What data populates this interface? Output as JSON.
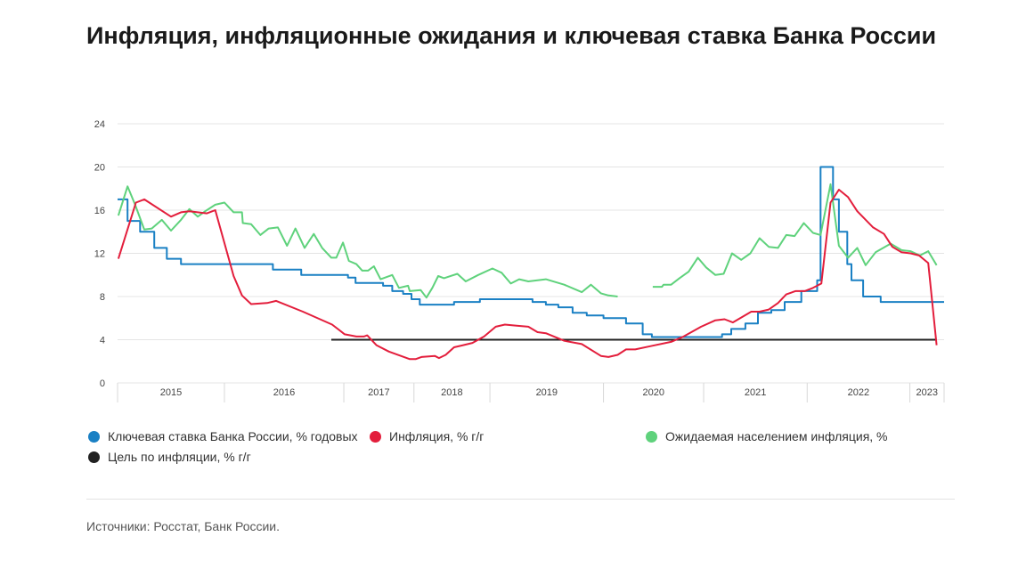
{
  "title": "Инфляция, инфляционные ожидания и ключевая ставка Банка России",
  "source": "Источники: Росстат, Банк России.",
  "chart_data": {
    "type": "line",
    "title": "Инфляция, инфляционные ожидания и ключевая ставка Банка России",
    "xlabel": "",
    "ylabel": "",
    "x_unit": "months since start of 2015 (approx.)",
    "xlim": [
      0,
      99
    ],
    "ylim": [
      0,
      24
    ],
    "yticks": [
      0,
      4,
      8,
      12,
      16,
      20,
      24
    ],
    "grid": true,
    "legend_position": "bottom",
    "x_bands": [
      {
        "label": "2015",
        "start": 0,
        "end": 12.8
      },
      {
        "label": "2016",
        "start": 12.8,
        "end": 27.1
      },
      {
        "label": "2017",
        "start": 27.1,
        "end": 35.5
      },
      {
        "label": "2018",
        "start": 35.5,
        "end": 44.6
      },
      {
        "label": "2019",
        "start": 44.6,
        "end": 58.2
      },
      {
        "label": "2020",
        "start": 58.2,
        "end": 70.2
      },
      {
        "label": "2021",
        "start": 70.2,
        "end": 82.6
      },
      {
        "label": "2022",
        "start": 82.6,
        "end": 94.9
      },
      {
        "label": "2023",
        "start": 94.9,
        "end": 99
      }
    ],
    "series": [
      {
        "name": "Ключевая ставка Банка России, % годовых",
        "color": "#1a80c4",
        "step": true,
        "points": [
          [
            0,
            17
          ],
          [
            1.2,
            15
          ],
          [
            2.7,
            14
          ],
          [
            4.4,
            12.5
          ],
          [
            5.9,
            11.5
          ],
          [
            7.6,
            11
          ],
          [
            18.6,
            10.5
          ],
          [
            22.0,
            10
          ],
          [
            27.6,
            9.75
          ],
          [
            28.5,
            9.25
          ],
          [
            31.8,
            9
          ],
          [
            32.9,
            8.5
          ],
          [
            34.2,
            8.25
          ],
          [
            35.2,
            7.75
          ],
          [
            36.2,
            7.25
          ],
          [
            40.3,
            7.5
          ],
          [
            43.4,
            7.75
          ],
          [
            49.7,
            7.5
          ],
          [
            51.3,
            7.25
          ],
          [
            52.8,
            7
          ],
          [
            54.5,
            6.5
          ],
          [
            56.2,
            6.25
          ],
          [
            58.2,
            6
          ],
          [
            60.9,
            5.5
          ],
          [
            62.9,
            4.5
          ],
          [
            64.0,
            4.25
          ],
          [
            72.4,
            4.5
          ],
          [
            73.5,
            5
          ],
          [
            75.2,
            5.5
          ],
          [
            76.7,
            6.5
          ],
          [
            78.3,
            6.75
          ],
          [
            79.9,
            7.5
          ],
          [
            81.9,
            8.5
          ],
          [
            83.8,
            9.5
          ],
          [
            84.2,
            20
          ],
          [
            85.7,
            17
          ],
          [
            86.4,
            14
          ],
          [
            87.4,
            11
          ],
          [
            87.9,
            9.5
          ],
          [
            89.3,
            8
          ],
          [
            91.4,
            7.5
          ],
          [
            99,
            7.5
          ]
        ]
      },
      {
        "name": "Инфляция, % г/г",
        "color": "#e31e3c",
        "step": false,
        "points": [
          [
            0.1,
            11.5
          ],
          [
            2.2,
            16.7
          ],
          [
            3.2,
            17
          ],
          [
            6.4,
            15.4
          ],
          [
            7.6,
            15.8
          ],
          [
            8.6,
            15.9
          ],
          [
            10.7,
            15.7
          ],
          [
            11.7,
            16
          ],
          [
            13.9,
            9.9
          ],
          [
            14.9,
            8.1
          ],
          [
            16.0,
            7.3
          ],
          [
            17.9,
            7.4
          ],
          [
            19.0,
            7.6
          ],
          [
            22.2,
            6.6
          ],
          [
            25.7,
            5.4
          ],
          [
            27.2,
            4.5
          ],
          [
            28.6,
            4.3
          ],
          [
            29.5,
            4.3
          ],
          [
            29.9,
            4.4
          ],
          [
            31.0,
            3.5
          ],
          [
            32.5,
            2.9
          ],
          [
            35.0,
            2.2
          ],
          [
            35.7,
            2.2
          ],
          [
            36.4,
            2.4
          ],
          [
            38.0,
            2.5
          ],
          [
            38.5,
            2.3
          ],
          [
            39.3,
            2.6
          ],
          [
            40.3,
            3.3
          ],
          [
            41.4,
            3.5
          ],
          [
            42.5,
            3.7
          ],
          [
            43.9,
            4.3
          ],
          [
            45.3,
            5.2
          ],
          [
            46.4,
            5.4
          ],
          [
            47.8,
            5.3
          ],
          [
            49.2,
            5.2
          ],
          [
            50.3,
            4.7
          ],
          [
            51.3,
            4.6
          ],
          [
            53.5,
            3.9
          ],
          [
            55.6,
            3.6
          ],
          [
            57.9,
            2.5
          ],
          [
            58.8,
            2.4
          ],
          [
            59.9,
            2.6
          ],
          [
            60.9,
            3.1
          ],
          [
            62.0,
            3.1
          ],
          [
            63.8,
            3.4
          ],
          [
            66.3,
            3.8
          ],
          [
            67.8,
            4.3
          ],
          [
            69.9,
            5.2
          ],
          [
            71.6,
            5.8
          ],
          [
            72.7,
            5.9
          ],
          [
            73.7,
            5.6
          ],
          [
            75.9,
            6.6
          ],
          [
            76.9,
            6.6
          ],
          [
            78.0,
            6.8
          ],
          [
            79.1,
            7.4
          ],
          [
            80.1,
            8.2
          ],
          [
            81.2,
            8.5
          ],
          [
            82.3,
            8.5
          ],
          [
            83.3,
            8.8
          ],
          [
            84.3,
            9.2
          ],
          [
            85.4,
            16.7
          ],
          [
            86.4,
            17.9
          ],
          [
            87.5,
            17.2
          ],
          [
            88.6,
            15.9
          ],
          [
            90.5,
            14.4
          ],
          [
            91.8,
            13.8
          ],
          [
            92.8,
            12.6
          ],
          [
            93.9,
            12.1
          ],
          [
            95.0,
            12.0
          ],
          [
            96.0,
            11.8
          ],
          [
            97.1,
            11.1
          ],
          [
            98.1,
            3.5
          ]
        ]
      },
      {
        "name": "Ожидаемая населением инфляция, %",
        "color": "#5fd27c",
        "step": false,
        "points": [
          [
            0.1,
            15.5
          ],
          [
            1.2,
            18.2
          ],
          [
            2.1,
            16.5
          ],
          [
            3.2,
            14.2
          ],
          [
            4.1,
            14.3
          ],
          [
            5.3,
            15.1
          ],
          [
            6.4,
            14.1
          ],
          [
            7.6,
            15.1
          ],
          [
            8.6,
            16.1
          ],
          [
            9.6,
            15.4
          ],
          [
            10.5,
            15.9
          ],
          [
            11.7,
            16.5
          ],
          [
            12.8,
            16.7
          ],
          [
            13.9,
            15.8
          ],
          [
            14.9,
            15.8
          ],
          [
            15.0,
            14.8
          ],
          [
            16.0,
            14.7
          ],
          [
            17.1,
            13.7
          ],
          [
            18.1,
            14.3
          ],
          [
            19.2,
            14.4
          ],
          [
            20.3,
            12.7
          ],
          [
            21.3,
            14.3
          ],
          [
            22.4,
            12.5
          ],
          [
            23.5,
            13.8
          ],
          [
            24.5,
            12.5
          ],
          [
            25.6,
            11.6
          ],
          [
            26.2,
            11.6
          ],
          [
            27.0,
            13.0
          ],
          [
            27.7,
            11.3
          ],
          [
            28.6,
            11.0
          ],
          [
            29.3,
            10.4
          ],
          [
            30.0,
            10.4
          ],
          [
            30.7,
            10.8
          ],
          [
            31.5,
            9.6
          ],
          [
            32.9,
            10.0
          ],
          [
            33.7,
            8.8
          ],
          [
            34.8,
            9.0
          ],
          [
            35.0,
            8.5
          ],
          [
            36.3,
            8.6
          ],
          [
            37.0,
            7.9
          ],
          [
            37.7,
            8.8
          ],
          [
            38.4,
            9.9
          ],
          [
            39.1,
            9.7
          ],
          [
            40.7,
            10.1
          ],
          [
            41.7,
            9.4
          ],
          [
            43.2,
            10.0
          ],
          [
            44.9,
            10.6
          ],
          [
            46.0,
            10.2
          ],
          [
            47.1,
            9.2
          ],
          [
            48.1,
            9.6
          ],
          [
            49.2,
            9.4
          ],
          [
            51.3,
            9.6
          ],
          [
            53.5,
            9.1
          ],
          [
            55.6,
            8.4
          ],
          [
            56.7,
            9.1
          ],
          [
            57.9,
            8.3
          ],
          [
            58.8,
            8.1
          ],
          [
            59.9,
            8.0
          ],
          null,
          [
            64.1,
            8.9
          ],
          [
            65.2,
            8.9
          ],
          [
            65.4,
            9.1
          ],
          [
            66.3,
            9.1
          ],
          [
            67.3,
            9.7
          ],
          [
            68.4,
            10.3
          ],
          [
            69.5,
            11.6
          ],
          [
            70.5,
            10.7
          ],
          [
            71.6,
            10.0
          ],
          [
            72.6,
            10.1
          ],
          [
            73.6,
            12.0
          ],
          [
            74.7,
            11.4
          ],
          [
            75.8,
            12.0
          ],
          [
            76.9,
            13.4
          ],
          [
            78.0,
            12.6
          ],
          [
            79.1,
            12.5
          ],
          [
            80.1,
            13.7
          ],
          [
            81.1,
            13.6
          ],
          [
            82.2,
            14.8
          ],
          [
            83.3,
            13.9
          ],
          [
            84.2,
            13.7
          ],
          [
            85.4,
            18.4
          ],
          [
            86.4,
            12.7
          ],
          [
            87.5,
            11.6
          ],
          [
            88.6,
            12.5
          ],
          [
            89.6,
            10.9
          ],
          [
            90.8,
            12.1
          ],
          [
            92.6,
            12.9
          ],
          [
            93.9,
            12.3
          ],
          [
            95.0,
            12.2
          ],
          [
            96.1,
            11.8
          ],
          [
            97.1,
            12.2
          ],
          [
            98.1,
            10.9
          ]
        ]
      },
      {
        "name": "Цель по инфляции, % г/г",
        "color": "#222222",
        "step": false,
        "points": [
          [
            25.6,
            4
          ],
          [
            98.1,
            4
          ]
        ]
      }
    ]
  }
}
